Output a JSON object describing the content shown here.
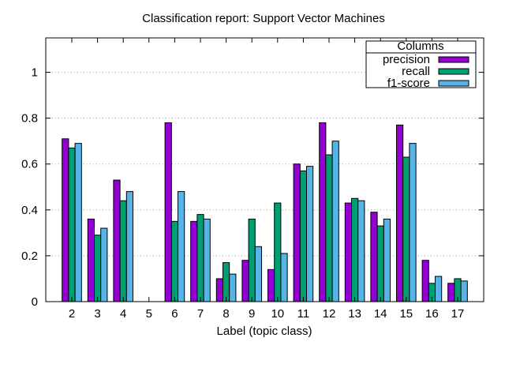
{
  "chart_data": {
    "type": "bar",
    "title": "Classification report: Support Vector Machines",
    "xlabel": "Label (topic class)",
    "ylabel": "",
    "ylim": [
      0,
      1.15
    ],
    "yticks": [
      "0",
      "0.2",
      "0.4",
      "0.6",
      "0.8",
      "1"
    ],
    "grid": "horizontal dotted",
    "legend_title": "Columns",
    "legend_position": "top-right",
    "categories": [
      "2",
      "3",
      "4",
      "5",
      "6",
      "7",
      "8",
      "9",
      "10",
      "11",
      "12",
      "13",
      "14",
      "15",
      "16",
      "17"
    ],
    "series": [
      {
        "name": "precision",
        "color": "#9400d3",
        "values": [
          0.71,
          0.36,
          0.53,
          0,
          0.78,
          0.35,
          0.1,
          0.18,
          0.14,
          0.6,
          0.78,
          0.43,
          0.39,
          0.77,
          0.18,
          0.08
        ]
      },
      {
        "name": "recall",
        "color": "#009e73",
        "values": [
          0.67,
          0.29,
          0.44,
          0,
          0.35,
          0.38,
          0.17,
          0.36,
          0.43,
          0.57,
          0.64,
          0.45,
          0.33,
          0.63,
          0.08,
          0.1
        ]
      },
      {
        "name": "f1-score",
        "color": "#56b4e9",
        "values": [
          0.69,
          0.32,
          0.48,
          0,
          0.48,
          0.36,
          0.12,
          0.24,
          0.21,
          0.59,
          0.7,
          0.44,
          0.36,
          0.69,
          0.11,
          0.09
        ]
      }
    ]
  }
}
